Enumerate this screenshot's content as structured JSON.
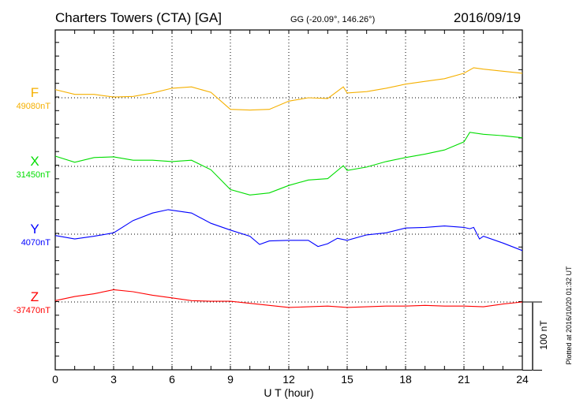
{
  "chart_data": {
    "type": "line",
    "title": "Charters Towers (CTA)  [GA]",
    "subtitle": "GG (-20.09°, 146.26°)",
    "date": "2016/09/19",
    "xlabel": "U T (hour)",
    "xlim": [
      0,
      24
    ],
    "xticks": [
      "0",
      "3",
      "6",
      "9",
      "12",
      "15",
      "18",
      "21",
      "24"
    ],
    "scale_bar_label": "100 nT",
    "scale_bar_nT": 100,
    "footer": "Plotted at 2016/10/20 01:32 UT",
    "grid": true,
    "series": [
      {
        "name": "F",
        "baseline_label": "49080nT",
        "color": "#f5b000",
        "x": [
          0,
          1,
          2,
          3,
          4,
          5,
          6,
          7,
          8,
          9,
          10,
          11,
          12,
          13,
          14,
          14.8,
          15,
          16,
          17,
          18,
          19,
          20,
          21,
          21.5,
          22,
          23,
          24
        ],
        "y": [
          12,
          5,
          5,
          1,
          2,
          7,
          14,
          16,
          8,
          -17,
          -18,
          -17,
          -5,
          0,
          -1,
          16,
          7,
          9,
          14,
          20,
          24,
          28,
          36,
          44,
          42,
          39,
          36
        ]
      },
      {
        "name": "X",
        "baseline_label": "31450nT",
        "color": "#00dd00",
        "x": [
          0,
          1,
          2,
          3,
          4,
          5,
          6,
          7,
          8,
          9,
          10,
          11,
          12,
          13,
          14,
          14.8,
          15,
          16,
          17,
          18,
          19,
          20,
          21,
          21.3,
          22,
          23,
          24
        ],
        "y": [
          15,
          6,
          13,
          14,
          9,
          9,
          7,
          9,
          -5,
          -34,
          -42,
          -39,
          -28,
          -20,
          -18,
          1,
          -6,
          -1,
          7,
          13,
          18,
          24,
          36,
          50,
          47,
          45,
          42
        ]
      },
      {
        "name": "Y",
        "baseline_label": "4070nT",
        "color": "#0000ff",
        "x": [
          0,
          1,
          2,
          3,
          4,
          5,
          5.8,
          7,
          8,
          9,
          10,
          10.5,
          11,
          12,
          13,
          13.5,
          14,
          14.5,
          15,
          16,
          17,
          18,
          19,
          20,
          21,
          21.3,
          21.5,
          21.8,
          22,
          23,
          24
        ],
        "y": [
          -2,
          -7,
          -3,
          2,
          20,
          31,
          36,
          31,
          16,
          6,
          -3,
          -15,
          -10,
          -9,
          -9,
          -18,
          -14,
          -6,
          -9,
          -1,
          2,
          9,
          10,
          12,
          10,
          8,
          10,
          -7,
          -3,
          -13,
          -24
        ]
      },
      {
        "name": "Z",
        "baseline_label": "-37470nT",
        "color": "#ff0000",
        "x": [
          0,
          1,
          2,
          3,
          4,
          5,
          6,
          7,
          8,
          9,
          10,
          11,
          12,
          13,
          14,
          15,
          16,
          17,
          18,
          19,
          20,
          21,
          22,
          23,
          24
        ],
        "y": [
          2,
          8,
          12,
          18,
          15,
          10,
          6,
          2,
          1,
          1,
          -2,
          -5,
          -8,
          -7,
          -6,
          -8,
          -7,
          -6,
          -6,
          -5,
          -6,
          -6,
          -7,
          -3,
          0
        ]
      }
    ]
  }
}
